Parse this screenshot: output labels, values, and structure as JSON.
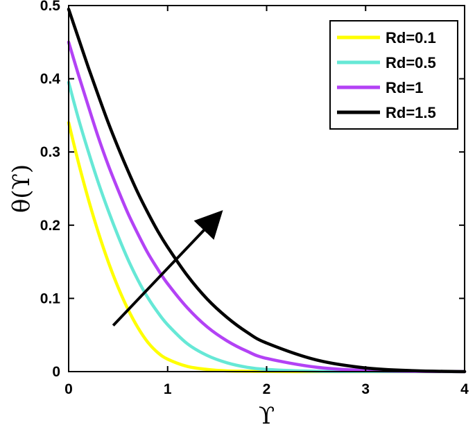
{
  "chart_data": {
    "type": "line",
    "xlabel": "ϒ",
    "ylabel": "θ(ϒ)",
    "xlim": [
      0,
      4
    ],
    "ylim": [
      0,
      0.5
    ],
    "x_ticks": [
      "0",
      "1",
      "2",
      "3",
      "4"
    ],
    "y_ticks": [
      "0",
      "0.1",
      "0.2",
      "0.3",
      "0.4",
      "0.5"
    ],
    "grid": false,
    "legend_position": "top-right",
    "series": [
      {
        "name": "Rd=0.1",
        "color": "#ffff00",
        "x": [
          0,
          0.1,
          0.2,
          0.3,
          0.4,
          0.5,
          0.6,
          0.7,
          0.8,
          0.9,
          1.0,
          1.2,
          1.4,
          1.6,
          1.8,
          2.0,
          2.5,
          3.0,
          3.5,
          4.0
        ],
        "y": [
          0.34,
          0.285,
          0.235,
          0.19,
          0.15,
          0.115,
          0.085,
          0.06,
          0.04,
          0.026,
          0.017,
          0.007,
          0.003,
          0.001,
          0.0005,
          0.0002,
          0.0,
          0.0,
          0.0,
          0.0
        ]
      },
      {
        "name": "Rd=0.5",
        "color": "#66e8d6",
        "x": [
          0,
          0.1,
          0.2,
          0.3,
          0.4,
          0.5,
          0.6,
          0.7,
          0.8,
          0.9,
          1.0,
          1.2,
          1.4,
          1.6,
          1.8,
          2.0,
          2.5,
          3.0,
          3.5,
          4.0
        ],
        "y": [
          0.395,
          0.345,
          0.3,
          0.258,
          0.22,
          0.185,
          0.153,
          0.125,
          0.101,
          0.081,
          0.064,
          0.038,
          0.022,
          0.012,
          0.006,
          0.003,
          0.0005,
          0.0001,
          0.0,
          0.0
        ]
      },
      {
        "name": "Rd=1",
        "color": "#b342f5",
        "x": [
          0,
          0.1,
          0.2,
          0.3,
          0.4,
          0.5,
          0.6,
          0.7,
          0.8,
          0.9,
          1.0,
          1.2,
          1.4,
          1.6,
          1.8,
          2.0,
          2.5,
          3.0,
          3.5,
          4.0
        ],
        "y": [
          0.45,
          0.405,
          0.362,
          0.32,
          0.282,
          0.248,
          0.216,
          0.188,
          0.162,
          0.14,
          0.12,
          0.087,
          0.061,
          0.042,
          0.028,
          0.018,
          0.006,
          0.0015,
          0.0003,
          0.0
        ]
      },
      {
        "name": "Rd=1.5",
        "color": "#000000",
        "x": [
          0,
          0.1,
          0.2,
          0.3,
          0.4,
          0.5,
          0.6,
          0.7,
          0.8,
          0.9,
          1.0,
          1.2,
          1.4,
          1.6,
          1.8,
          2.0,
          2.5,
          3.0,
          3.5,
          4.0
        ],
        "y": [
          0.495,
          0.455,
          0.415,
          0.377,
          0.34,
          0.306,
          0.274,
          0.244,
          0.217,
          0.192,
          0.17,
          0.131,
          0.099,
          0.074,
          0.054,
          0.039,
          0.016,
          0.005,
          0.0012,
          0.0
        ]
      }
    ],
    "annotations": [
      {
        "type": "arrow",
        "from": [
          0.45,
          0.063
        ],
        "to": [
          1.52,
          0.215
        ],
        "color": "#000000"
      }
    ]
  }
}
